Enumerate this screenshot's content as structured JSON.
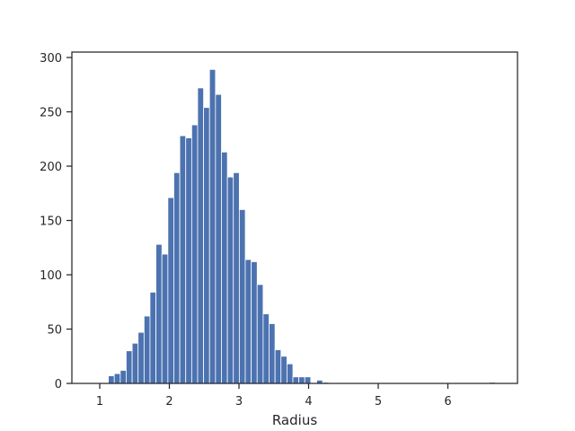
{
  "chart_data": {
    "type": "bar",
    "subtype": "histogram",
    "title": "",
    "xlabel": "Radius",
    "ylabel": "",
    "xlim": [
      0.6,
      7.0
    ],
    "ylim": [
      0,
      305
    ],
    "x_ticks": [
      1,
      2,
      3,
      4,
      5,
      6
    ],
    "y_ticks": [
      0,
      50,
      100,
      150,
      200,
      250,
      300
    ],
    "grid": false,
    "bar_color": "#4c72b0",
    "bin_width": 0.0855,
    "bin_starts": [
      1.124,
      1.209,
      1.295,
      1.38,
      1.466,
      1.551,
      1.637,
      1.722,
      1.808,
      1.893,
      1.979,
      2.064,
      2.15,
      2.235,
      2.321,
      2.406,
      2.492,
      2.577,
      2.663,
      2.748,
      2.834,
      2.919,
      3.005,
      3.09,
      3.176,
      3.261,
      3.347,
      3.432,
      3.518,
      3.603,
      3.689,
      3.774,
      3.86,
      3.945,
      4.031,
      4.116,
      4.202,
      4.287,
      4.373,
      4.458,
      4.544,
      4.629,
      4.715,
      4.8,
      4.886,
      4.971,
      5.057,
      5.142,
      5.228,
      5.313,
      5.399,
      5.484,
      5.57,
      5.655,
      5.741,
      5.826,
      5.912,
      5.997,
      6.083,
      6.168,
      6.254,
      6.339,
      6.425,
      6.51,
      6.596
    ],
    "counts": [
      7,
      9,
      12,
      30,
      37,
      47,
      62,
      84,
      128,
      119,
      171,
      194,
      228,
      226,
      238,
      272,
      254,
      289,
      266,
      213,
      190,
      194,
      160,
      114,
      112,
      91,
      64,
      55,
      31,
      25,
      18,
      6,
      6,
      6,
      0,
      3,
      1,
      0,
      0,
      0,
      0,
      0,
      0,
      0,
      0,
      0,
      0,
      0,
      0,
      0,
      0,
      0,
      0,
      0,
      0,
      0,
      0,
      0,
      0,
      0,
      0,
      0,
      0,
      0,
      1
    ]
  }
}
